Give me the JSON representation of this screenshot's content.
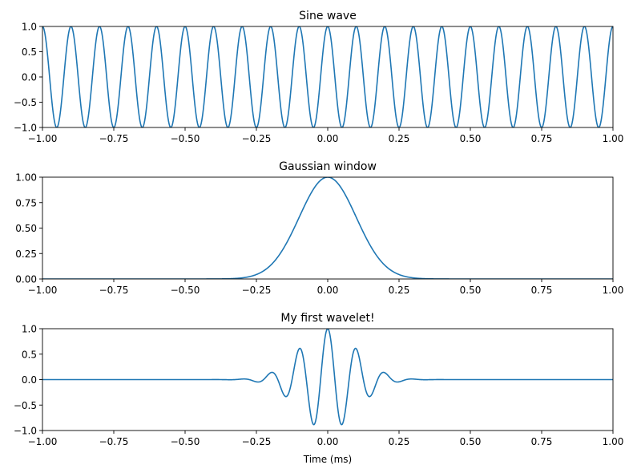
{
  "chart_data": [
    {
      "type": "line",
      "title": "Sine wave",
      "xlabel": "",
      "ylabel": "",
      "xlim": [
        -1,
        1
      ],
      "ylim": [
        -1,
        1
      ],
      "xticks": [
        -1.0,
        -0.75,
        -0.5,
        -0.25,
        0.0,
        0.25,
        0.5,
        0.75,
        1.0
      ],
      "xtick_labels": [
        "−1.00",
        "−0.75",
        "−0.50",
        "−0.25",
        "0.00",
        "0.25",
        "0.50",
        "0.75",
        "1.00"
      ],
      "yticks": [
        -1.0,
        -0.5,
        0.0,
        0.5,
        1.0
      ],
      "ytick_labels": [
        "−1.0",
        "−0.5",
        "0.0",
        "0.5",
        "1.0"
      ],
      "grid": false,
      "series": [
        {
          "function": "cos(2*pi*10*t)",
          "frequency_hz": 10,
          "amplitude": 1,
          "x_range": [
            -1,
            1
          ],
          "samples": 2001,
          "color": "#1f77b4"
        }
      ]
    },
    {
      "type": "line",
      "title": "Gaussian window",
      "xlabel": "",
      "ylabel": "",
      "xlim": [
        -1,
        1
      ],
      "ylim": [
        0,
        1
      ],
      "xticks": [
        -1.0,
        -0.75,
        -0.5,
        -0.25,
        0.0,
        0.25,
        0.5,
        0.75,
        1.0
      ],
      "xtick_labels": [
        "−1.00",
        "−0.75",
        "−0.50",
        "−0.25",
        "0.00",
        "0.25",
        "0.50",
        "0.75",
        "1.00"
      ],
      "yticks": [
        0.0,
        0.25,
        0.5,
        0.75,
        1.0
      ],
      "ytick_labels": [
        "0.00",
        "0.25",
        "0.50",
        "0.75",
        "1.00"
      ],
      "grid": false,
      "series": [
        {
          "function": "exp(-t^2/(2*s^2))",
          "sigma": 0.1,
          "x_range": [
            -1,
            1
          ],
          "samples": 2001,
          "color": "#1f77b4"
        }
      ]
    },
    {
      "type": "line",
      "title": "My first wavelet!",
      "xlabel": "Time (ms)",
      "ylabel": "",
      "xlim": [
        -1,
        1
      ],
      "ylim": [
        -1,
        1
      ],
      "xticks": [
        -1.0,
        -0.75,
        -0.5,
        -0.25,
        0.0,
        0.25,
        0.5,
        0.75,
        1.0
      ],
      "xtick_labels": [
        "−1.00",
        "−0.75",
        "−0.50",
        "−0.25",
        "0.00",
        "0.25",
        "0.50",
        "0.75",
        "1.00"
      ],
      "yticks": [
        -1.0,
        -0.5,
        0.0,
        0.5,
        1.0
      ],
      "ytick_labels": [
        "−1.0",
        "−0.5",
        "0.0",
        "0.5",
        "1.0"
      ],
      "grid": false,
      "series": [
        {
          "function": "cos(2*pi*f*t)*exp(-t^2/(2*s^2))",
          "frequency_hz": 10,
          "sigma": 0.1,
          "x_range": [
            -1,
            1
          ],
          "samples": 2001,
          "color": "#1f77b4"
        }
      ]
    }
  ]
}
